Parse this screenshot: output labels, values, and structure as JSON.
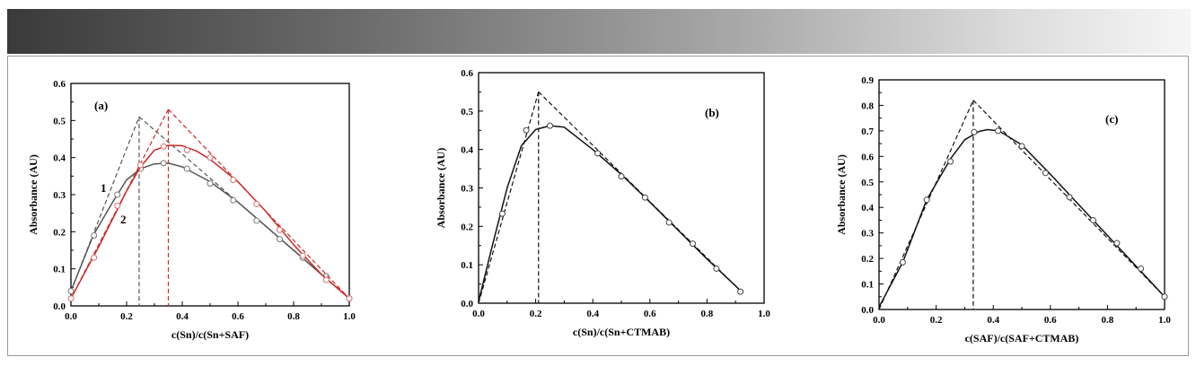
{
  "chart_data": [
    {
      "type": "line",
      "panel_label": "(a)",
      "xlabel": "c(Sn)/c(Sn+SAF)",
      "ylabel": "Absorbance (AU)",
      "xlim": [
        0.0,
        1.0
      ],
      "ylim": [
        0.0,
        0.6
      ],
      "xticks": [
        "0.0",
        "0.2",
        "0.4",
        "0.6",
        "0.8",
        "1.0"
      ],
      "yticks": [
        "0.0",
        "0.1",
        "0.2",
        "0.3",
        "0.4",
        "0.5",
        "0.6"
      ],
      "series": [
        {
          "name": "1",
          "color": "#555555",
          "marker_color": "#777777",
          "points": [
            [
              0.0,
              0.04
            ],
            [
              0.083,
              0.19
            ],
            [
              0.167,
              0.3
            ],
            [
              0.25,
              0.37
            ],
            [
              0.333,
              0.385
            ],
            [
              0.417,
              0.37
            ],
            [
              0.5,
              0.33
            ],
            [
              0.583,
              0.285
            ],
            [
              0.667,
              0.23
            ],
            [
              0.75,
              0.18
            ],
            [
              0.833,
              0.13
            ],
            [
              0.917,
              0.08
            ],
            [
              1.0,
              0.02
            ]
          ],
          "curve": [
            [
              0.0,
              0.04
            ],
            [
              0.08,
              0.19
            ],
            [
              0.15,
              0.28
            ],
            [
              0.2,
              0.34
            ],
            [
              0.25,
              0.37
            ],
            [
              0.3,
              0.383
            ],
            [
              0.35,
              0.385
            ],
            [
              0.4,
              0.375
            ],
            [
              0.5,
              0.335
            ],
            [
              0.6,
              0.28
            ],
            [
              0.7,
              0.215
            ],
            [
              0.8,
              0.15
            ],
            [
              0.9,
              0.085
            ],
            [
              1.0,
              0.02
            ]
          ],
          "tangents": [
            [
              [
                0.0,
                0.04
              ],
              [
                0.245,
                0.51
              ]
            ],
            [
              [
                0.245,
                0.51
              ],
              [
                1.0,
                0.02
              ]
            ]
          ],
          "dropline": [
            0.245,
            0.51
          ]
        },
        {
          "name": "2",
          "color": "#cc2a2a",
          "marker_color": "#d77070",
          "points": [
            [
              0.0,
              0.02
            ],
            [
              0.083,
              0.13
            ],
            [
              0.167,
              0.27
            ],
            [
              0.25,
              0.38
            ],
            [
              0.333,
              0.43
            ],
            [
              0.417,
              0.42
            ],
            [
              0.5,
              0.4
            ],
            [
              0.583,
              0.34
            ],
            [
              0.667,
              0.275
            ],
            [
              0.75,
              0.205
            ],
            [
              0.833,
              0.135
            ],
            [
              0.917,
              0.07
            ],
            [
              1.0,
              0.02
            ]
          ],
          "curve": [
            [
              0.0,
              0.02
            ],
            [
              0.1,
              0.16
            ],
            [
              0.2,
              0.31
            ],
            [
              0.25,
              0.375
            ],
            [
              0.3,
              0.42
            ],
            [
              0.35,
              0.433
            ],
            [
              0.4,
              0.432
            ],
            [
              0.45,
              0.418
            ],
            [
              0.5,
              0.395
            ],
            [
              0.6,
              0.335
            ],
            [
              0.7,
              0.255
            ],
            [
              0.8,
              0.165
            ],
            [
              0.9,
              0.085
            ],
            [
              1.0,
              0.02
            ]
          ],
          "tangents": [
            [
              [
                0.0,
                0.02
              ],
              [
                0.35,
                0.53
              ]
            ],
            [
              [
                0.35,
                0.53
              ],
              [
                1.0,
                0.02
              ]
            ]
          ],
          "dropline": [
            0.35,
            0.53
          ]
        }
      ],
      "annotations": [
        "1",
        "2"
      ]
    },
    {
      "type": "line",
      "panel_label": "(b)",
      "xlabel": "c(Sn)/c(Sn+CTMAB)",
      "ylabel": "Absorbance (AU)",
      "xlim": [
        0.0,
        1.0
      ],
      "ylim": [
        0.0,
        0.6
      ],
      "xticks": [
        "0.0",
        "0.2",
        "0.4",
        "0.6",
        "0.8",
        "1.0"
      ],
      "yticks": [
        "0.0",
        "0.1",
        "0.2",
        "0.3",
        "0.4",
        "0.5",
        "0.6"
      ],
      "series": [
        {
          "color": "#111111",
          "marker_color": "#444444",
          "points": [
            [
              0.083,
              0.233
            ],
            [
              0.167,
              0.45
            ],
            [
              0.25,
              0.462
            ],
            [
              0.417,
              0.39
            ],
            [
              0.5,
              0.33
            ],
            [
              0.583,
              0.275
            ],
            [
              0.667,
              0.21
            ],
            [
              0.75,
              0.155
            ],
            [
              0.833,
              0.09
            ],
            [
              0.917,
              0.03
            ]
          ],
          "curve": [
            [
              0.0,
              0.005
            ],
            [
              0.05,
              0.155
            ],
            [
              0.1,
              0.3
            ],
            [
              0.15,
              0.41
            ],
            [
              0.2,
              0.452
            ],
            [
              0.25,
              0.462
            ],
            [
              0.3,
              0.458
            ],
            [
              0.4,
              0.4
            ],
            [
              0.5,
              0.335
            ],
            [
              0.6,
              0.263
            ],
            [
              0.7,
              0.189
            ],
            [
              0.8,
              0.115
            ],
            [
              0.9,
              0.045
            ],
            [
              0.92,
              0.03
            ]
          ],
          "tangents": [
            [
              [
                0.0,
                0.0
              ],
              [
                0.21,
                0.55
              ]
            ],
            [
              [
                0.21,
                0.55
              ],
              [
                0.92,
                0.03
              ]
            ]
          ],
          "dropline": [
            0.21,
            0.55
          ]
        }
      ]
    },
    {
      "type": "line",
      "panel_label": "(c)",
      "xlabel": "c(SAF)/c(SAF+CTMAB)",
      "ylabel": "Absorbance (AU)",
      "xlim": [
        0.0,
        1.0
      ],
      "ylim": [
        0.0,
        0.9
      ],
      "xticks": [
        "0.0",
        "0.2",
        "0.4",
        "0.6",
        "0.8",
        "1.0"
      ],
      "yticks": [
        "0.0",
        "0.1",
        "0.2",
        "0.3",
        "0.4",
        "0.5",
        "0.6",
        "0.7",
        "0.8",
        "0.9"
      ],
      "series": [
        {
          "color": "#111111",
          "marker_color": "#444444",
          "points": [
            [
              0.083,
              0.185
            ],
            [
              0.167,
              0.43
            ],
            [
              0.25,
              0.58
            ],
            [
              0.333,
              0.695
            ],
            [
              0.417,
              0.7
            ],
            [
              0.5,
              0.64
            ],
            [
              0.583,
              0.535
            ],
            [
              0.667,
              0.44
            ],
            [
              0.75,
              0.35
            ],
            [
              0.833,
              0.26
            ],
            [
              0.917,
              0.16
            ],
            [
              1.0,
              0.05
            ]
          ],
          "curve": [
            [
              0.0,
              0.01
            ],
            [
              0.083,
              0.185
            ],
            [
              0.167,
              0.43
            ],
            [
              0.25,
              0.59
            ],
            [
              0.3,
              0.665
            ],
            [
              0.35,
              0.698
            ],
            [
              0.38,
              0.705
            ],
            [
              0.42,
              0.7
            ],
            [
              0.5,
              0.645
            ],
            [
              0.6,
              0.53
            ],
            [
              0.7,
              0.41
            ],
            [
              0.8,
              0.29
            ],
            [
              0.9,
              0.17
            ],
            [
              1.0,
              0.05
            ]
          ],
          "tangents": [
            [
              [
                0.0,
                0.0
              ],
              [
                0.33,
                0.82
              ]
            ],
            [
              [
                0.33,
                0.82
              ],
              [
                1.0,
                0.05
              ]
            ]
          ],
          "dropline": [
            0.33,
            0.82
          ]
        }
      ]
    }
  ]
}
